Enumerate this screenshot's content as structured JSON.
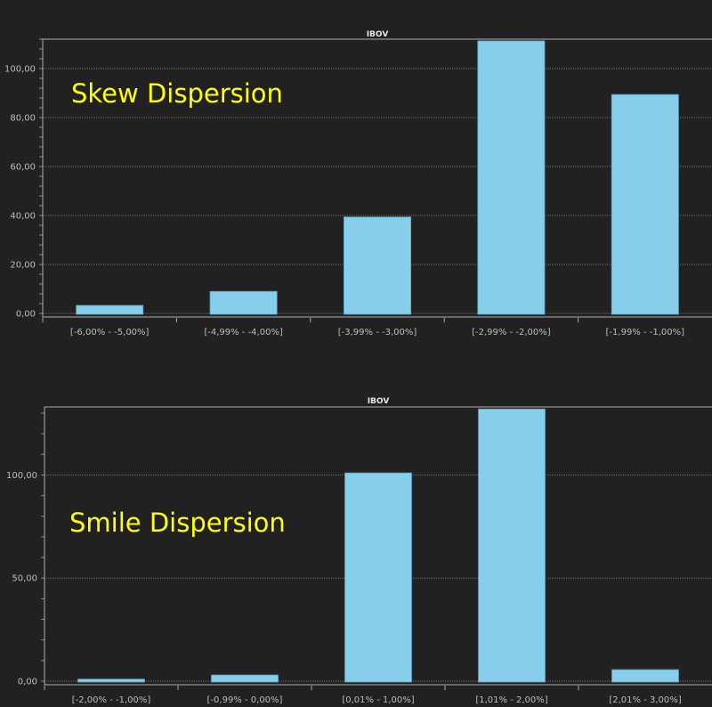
{
  "chart_data": [
    {
      "type": "bar",
      "title": "IBOV",
      "annotation": "Skew Dispersion",
      "categories": [
        "[-6,00% - -5,00%]",
        "[-4,99% - -4,00%]",
        "[-3,99% - -3,00%]",
        "[-2,99% - -2,00%]",
        "[-1,99% - -1,00%]"
      ],
      "values": [
        3.3,
        9,
        39.4,
        111.3,
        89.4
      ],
      "ylim": [
        0,
        112
      ],
      "yticks": [
        0,
        20,
        40,
        60,
        80,
        100
      ],
      "ytick_labels": [
        "0,00",
        "20,00",
        "40,00",
        "60,00",
        "80,00",
        "100,00"
      ],
      "grid": true,
      "bar_color": "#87ceeb",
      "xlabel": "",
      "ylabel": ""
    },
    {
      "type": "bar",
      "title": "IBOV",
      "annotation": "Smile Dispersion",
      "categories": [
        "[-2,00% - -1,00%]",
        "[-0,99% - 0,00%]",
        "[0,01% - 1,00%]",
        "[1,01% - 2,00%]",
        "[2,01% - 3,00%]"
      ],
      "values": [
        1,
        3,
        101,
        132,
        5.6
      ],
      "ylim": [
        0,
        133
      ],
      "yticks": [
        0,
        50,
        100
      ],
      "ytick_labels": [
        "0,00",
        "50,00",
        "100,00"
      ],
      "grid": true,
      "bar_color": "#87ceeb",
      "xlabel": "",
      "ylabel": ""
    }
  ]
}
